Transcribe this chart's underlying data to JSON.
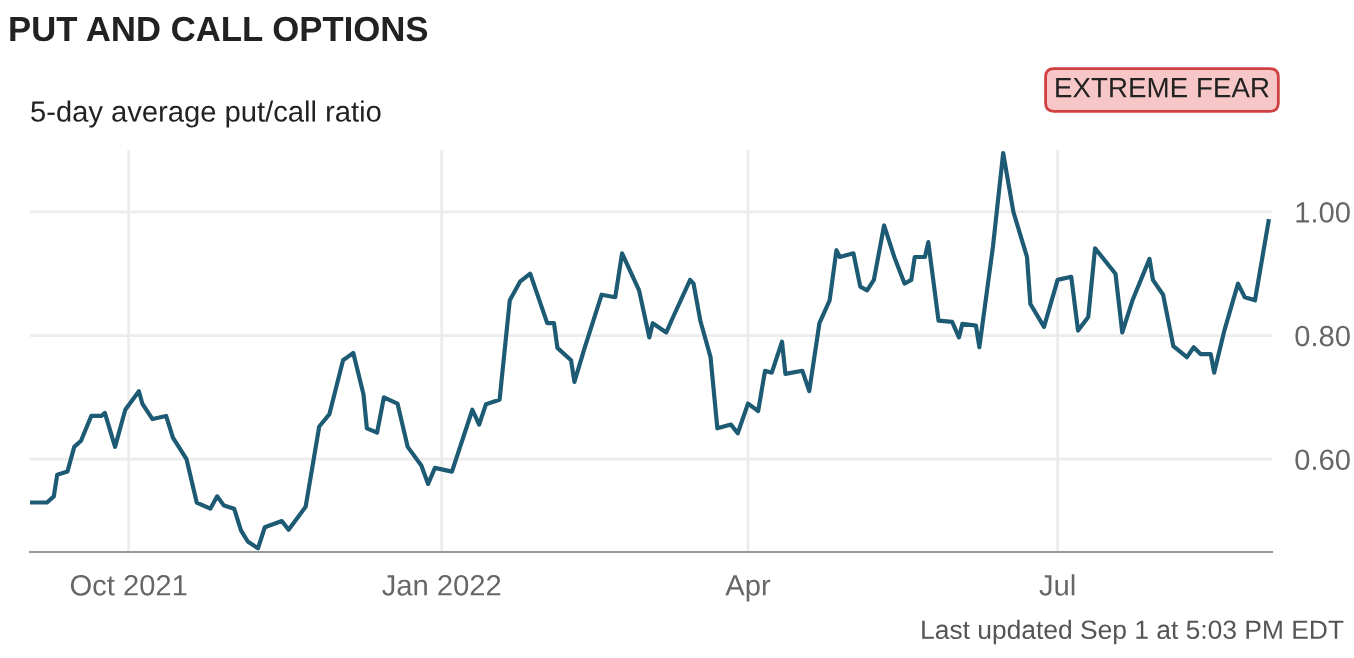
{
  "chart_data": {
    "type": "line",
    "title": "PUT AND CALL OPTIONS",
    "subtitle": "5-day average put/call ratio",
    "annotations": [
      "EXTREME FEAR",
      "Last updated Sep 1 at 5:03 PM EDT"
    ],
    "x": [
      "2021-09-02",
      "2021-09-07",
      "2021-09-09",
      "2021-09-10",
      "2021-09-13",
      "2021-09-15",
      "2021-09-17",
      "2021-09-20",
      "2021-09-23",
      "2021-09-24",
      "2021-09-27",
      "2021-09-30",
      "2021-10-04",
      "2021-10-05",
      "2021-10-08",
      "2021-10-12",
      "2021-10-14",
      "2021-10-18",
      "2021-10-21",
      "2021-10-25",
      "2021-10-27",
      "2021-10-29",
      "2021-11-01",
      "2021-11-03",
      "2021-11-05",
      "2021-11-08",
      "2021-11-10",
      "2021-11-15",
      "2021-11-17",
      "2021-11-22",
      "2021-11-26",
      "2021-11-29",
      "2021-12-03",
      "2021-12-06",
      "2021-12-09",
      "2021-12-10",
      "2021-12-13",
      "2021-12-15",
      "2021-12-19",
      "2021-12-22",
      "2021-12-26",
      "2021-12-28",
      "2021-12-30",
      "2022-01-04",
      "2022-01-10",
      "2022-01-12",
      "2022-01-14",
      "2022-01-18",
      "2022-01-21",
      "2022-01-24",
      "2022-01-27",
      "2022-02-01",
      "2022-02-03",
      "2022-02-04",
      "2022-02-08",
      "2022-02-09",
      "2022-02-12",
      "2022-02-17",
      "2022-02-21",
      "2022-02-23",
      "2022-02-28",
      "2022-03-03",
      "2022-03-04",
      "2022-03-08",
      "2022-03-10",
      "2022-03-15",
      "2022-03-16",
      "2022-03-18",
      "2022-03-21",
      "2022-03-23",
      "2022-03-27",
      "2022-03-29",
      "2022-04-01",
      "2022-04-04",
      "2022-04-06",
      "2022-04-08",
      "2022-04-11",
      "2022-04-12",
      "2022-04-17",
      "2022-04-19",
      "2022-04-22",
      "2022-04-25",
      "2022-04-27",
      "2022-04-28",
      "2022-05-02",
      "2022-05-04",
      "2022-05-06",
      "2022-05-08",
      "2022-05-11",
      "2022-05-14",
      "2022-05-17",
      "2022-05-19",
      "2022-05-20",
      "2022-05-23",
      "2022-05-24",
      "2022-05-27",
      "2022-05-31",
      "2022-06-02",
      "2022-06-03",
      "2022-06-07",
      "2022-06-08",
      "2022-06-12",
      "2022-06-15",
      "2022-06-18",
      "2022-06-22",
      "2022-06-23",
      "2022-06-27",
      "2022-07-01",
      "2022-07-05",
      "2022-07-07",
      "2022-07-10",
      "2022-07-12",
      "2022-07-18",
      "2022-07-20",
      "2022-07-23",
      "2022-07-28",
      "2022-07-29",
      "2022-08-01",
      "2022-08-04",
      "2022-08-08",
      "2022-08-10",
      "2022-08-12",
      "2022-08-15",
      "2022-08-16",
      "2022-08-19",
      "2022-08-23",
      "2022-08-25",
      "2022-08-28",
      "2022-09-01"
    ],
    "series": [
      {
        "color": "#1d5a73",
        "values": [
          0.53,
          0.53,
          0.54,
          0.575,
          0.58,
          0.62,
          0.63,
          0.67,
          0.67,
          0.675,
          0.62,
          0.68,
          0.71,
          0.69,
          0.665,
          0.67,
          0.635,
          0.6,
          0.53,
          0.52,
          0.54,
          0.525,
          0.52,
          0.485,
          0.467,
          0.456,
          0.49,
          0.5,
          0.486,
          0.523,
          0.653,
          0.673,
          0.76,
          0.772,
          0.705,
          0.65,
          0.643,
          0.7,
          0.69,
          0.62,
          0.59,
          0.56,
          0.586,
          0.58,
          0.68,
          0.656,
          0.689,
          0.696,
          0.857,
          0.887,
          0.9,
          0.82,
          0.82,
          0.78,
          0.76,
          0.725,
          0.78,
          0.866,
          0.862,
          0.933,
          0.873,
          0.797,
          0.82,
          0.805,
          0.83,
          0.89,
          0.884,
          0.824,
          0.765,
          0.65,
          0.656,
          0.642,
          0.69,
          0.678,
          0.743,
          0.74,
          0.79,
          0.738,
          0.743,
          0.71,
          0.82,
          0.857,
          0.938,
          0.927,
          0.933,
          0.879,
          0.873,
          0.89,
          0.978,
          0.927,
          0.884,
          0.89,
          0.927,
          0.927,
          0.951,
          0.824,
          0.822,
          0.797,
          0.819,
          0.816,
          0.781,
          0.944,
          1.095,
          1.0,
          0.927,
          0.851,
          0.814,
          0.89,
          0.895,
          0.808,
          0.83,
          0.941,
          0.9,
          0.805,
          0.857,
          0.924,
          0.89,
          0.866,
          0.783,
          0.765,
          0.781,
          0.77,
          0.77,
          0.74,
          0.808,
          0.884,
          0.862,
          0.857,
          0.985
        ]
      }
    ],
    "xlim": [
      "2021-09-02",
      "2022-09-02"
    ],
    "xticks": [
      {
        "value": "2021-10-01",
        "label": "Oct 2021"
      },
      {
        "value": "2022-01-01",
        "label": "Jan 2022"
      },
      {
        "value": "2022-04-01",
        "label": "Apr"
      },
      {
        "value": "2022-07-01",
        "label": "Jul"
      }
    ],
    "ylim": [
      0.45,
      1.1
    ],
    "yticks": [
      {
        "value": 0.6,
        "label": "0.60"
      },
      {
        "value": 0.8,
        "label": "0.80"
      },
      {
        "value": 1.0,
        "label": "1.00"
      }
    ],
    "grid": true,
    "legend": false
  }
}
